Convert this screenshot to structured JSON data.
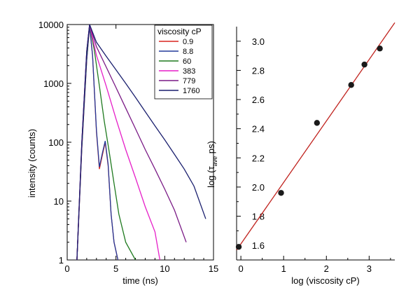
{
  "chart_data": [
    {
      "type": "line",
      "xlabel": "time (ns)",
      "ylabel": "intensity (counts)",
      "xlim": [
        0,
        15
      ],
      "ylim": [
        1,
        10000
      ],
      "yscale": "log",
      "xticks": [
        0,
        5,
        10,
        15
      ],
      "yticks": [
        1,
        10,
        100,
        1000,
        10000
      ],
      "grid": false,
      "legend": {
        "title": "viscosity cP",
        "placement": "top-right"
      },
      "series": [
        {
          "name": "0.9",
          "color": "#d8231f",
          "x": [
            1,
            1.5,
            2,
            2.3,
            2.6,
            3,
            3.3,
            3.6,
            3.9,
            4.2,
            4.5,
            4.8,
            5.2
          ],
          "y": [
            1,
            80,
            2500,
            9500,
            3000,
            150,
            35,
            60,
            100,
            40,
            6,
            2,
            1
          ]
        },
        {
          "name": "8.8",
          "color": "#223a9a",
          "x": [
            1,
            1.5,
            2,
            2.3,
            2.6,
            3,
            3.3,
            3.6,
            3.9,
            4.2,
            4.5,
            4.8,
            5.2
          ],
          "y": [
            1,
            80,
            2500,
            9500,
            3000,
            160,
            38,
            65,
            105,
            42,
            6,
            2,
            1
          ]
        },
        {
          "name": "60",
          "color": "#1f7a1f",
          "x": [
            1,
            1.5,
            2,
            2.3,
            2.8,
            3.3,
            3.8,
            4.3,
            4.8,
            5.3,
            6,
            7
          ],
          "y": [
            1,
            90,
            3000,
            10000,
            3500,
            900,
            230,
            70,
            20,
            6,
            2,
            1
          ]
        },
        {
          "name": "383",
          "color": "#e61fc8",
          "x": [
            1,
            1.5,
            2,
            2.3,
            3,
            4,
            5,
            6,
            7,
            8,
            9,
            9.5
          ],
          "y": [
            1,
            100,
            3500,
            10000,
            3000,
            900,
            250,
            75,
            25,
            8,
            3,
            1
          ]
        },
        {
          "name": "779",
          "color": "#7a1a85",
          "x": [
            1,
            1.5,
            2,
            2.3,
            3,
            4,
            5,
            6,
            7,
            8,
            9,
            10,
            11,
            12.2
          ],
          "y": [
            1,
            100,
            3500,
            10000,
            4200,
            1900,
            850,
            380,
            170,
            75,
            35,
            16,
            7,
            2
          ]
        },
        {
          "name": "1760",
          "color": "#1a1f6e",
          "x": [
            1,
            1.5,
            2,
            2.3,
            3,
            4,
            5,
            6,
            7,
            8,
            9,
            10,
            11,
            12,
            13,
            14.2
          ],
          "y": [
            1,
            100,
            3500,
            10000,
            5000,
            2900,
            1700,
            1000,
            580,
            330,
            190,
            110,
            62,
            35,
            18,
            5
          ]
        }
      ]
    },
    {
      "type": "scatter",
      "xlabel": "log (viscosity cP)",
      "ylabel": "log (τ ave ps)",
      "ylabel_parts": {
        "pre": "log (τ",
        "sub": "ave",
        "post": " ps)"
      },
      "xlim": [
        -0.1,
        3.6
      ],
      "ylim": [
        1.5,
        3.1
      ],
      "xticks": [
        0,
        1,
        2,
        3
      ],
      "yticks": [
        1.6,
        1.8,
        2.0,
        2.2,
        2.4,
        2.6,
        2.8,
        3.0
      ],
      "ytick_labels": [
        "1.6",
        "1.8",
        "2.0",
        "2.2",
        "2.4",
        "2.6",
        "2.8",
        "3.0"
      ],
      "grid": false,
      "points": {
        "color": "#1a1a1a",
        "x": [
          -0.05,
          0.94,
          1.78,
          2.58,
          2.89,
          3.25
        ],
        "y": [
          1.59,
          1.96,
          2.44,
          2.7,
          2.84,
          2.95
        ]
      },
      "fit_line": {
        "color": "#c0231e",
        "x": [
          -0.1,
          3.6
        ],
        "y": [
          1.568,
          3.127
        ]
      }
    }
  ]
}
